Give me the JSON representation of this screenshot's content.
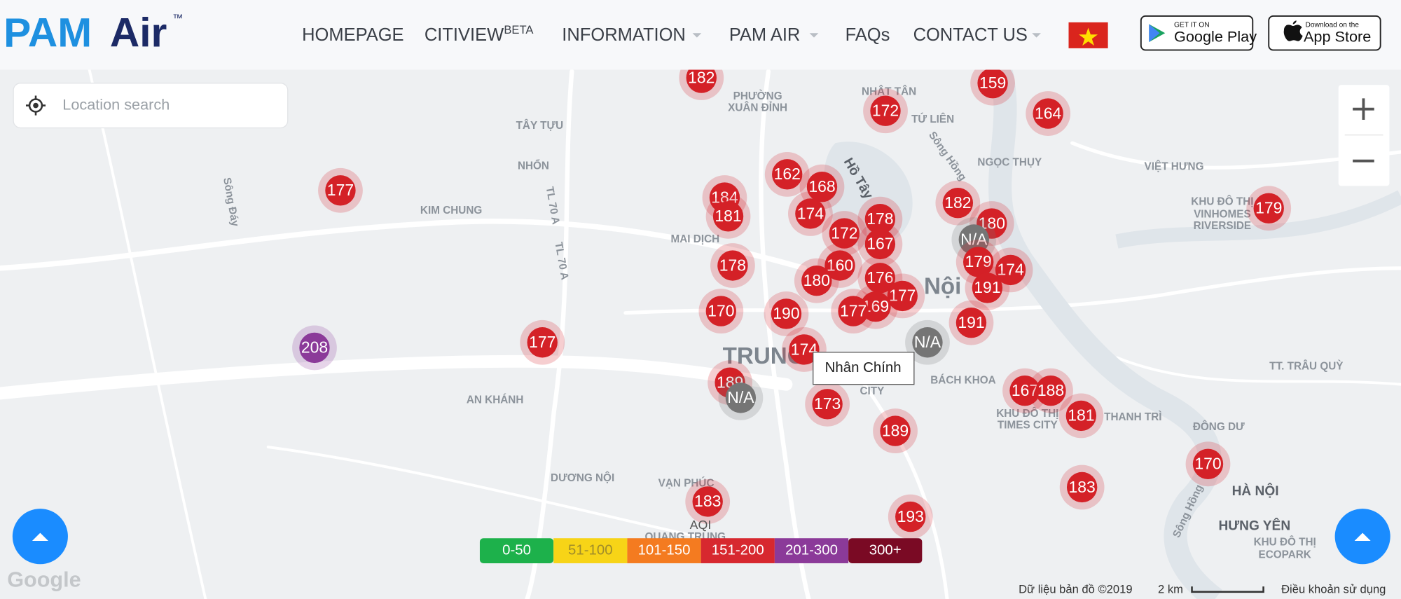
{
  "header": {
    "logo_pam": "PAM",
    "logo_air": "Air",
    "logo_mark": "™",
    "nav": [
      "HOMEPAGE",
      "CITIVIEW",
      "INFORMATION",
      "PAM AIR",
      "FAQs",
      "CONTACT US"
    ],
    "nav_badge": "BETA",
    "google_play": {
      "small": "GET IT ON",
      "big": "Google Play"
    },
    "app_store": {
      "small": "Download on the",
      "big": "App Store"
    }
  },
  "search": {
    "placeholder": "Location search"
  },
  "map": {
    "labels": [
      "PHƯỜNG",
      "XUÂN ĐỈNH",
      "NHẬT TÂN",
      "TỨ LIÊN",
      "TÂY TỰU",
      "NHỔN",
      "Sông Hồng",
      "NGỌC THỤY",
      "VIỆT HƯNG",
      "KHU ĐÔ THỊ",
      "VINHOMES",
      "RIVERSIDE",
      "Sông Đáy",
      "KIM CHUNG",
      "TL 70 A",
      "TL 70 A",
      "MAI DỊCH",
      "Hồ Tây",
      "Nội",
      "TRUNG",
      "AN KHÁNH",
      "BÁCH KHOA",
      "TT. TRÂU QUỲ",
      "ĐÔNG DƯ",
      "KHU ĐÔ THỊ",
      "TIMES CITY",
      "THANH TRÌ",
      "DƯƠNG NỘI",
      "VẠN PHÚC",
      "HÀ NỘI",
      "HƯNG YÊN",
      "KHU ĐÔ THỊ",
      "ECOPARK",
      "Sông Hồng",
      "QUANG TRUNG",
      "CITY"
    ],
    "markers": [
      {
        "label": "182",
        "color": "#d42127"
      },
      {
        "label": "159",
        "color": "#d42127"
      },
      {
        "label": "172",
        "color": "#d42127"
      },
      {
        "label": "164",
        "color": "#d42127"
      },
      {
        "label": "177",
        "color": "#d42127"
      },
      {
        "label": "179",
        "color": "#d42127"
      },
      {
        "label": "162",
        "color": "#d42127"
      },
      {
        "label": "168",
        "color": "#d42127"
      },
      {
        "label": "184",
        "color": "#d42127"
      },
      {
        "label": "181",
        "color": "#d42127"
      },
      {
        "label": "174",
        "color": "#d42127"
      },
      {
        "label": "178",
        "color": "#d42127"
      },
      {
        "label": "182",
        "color": "#d42127"
      },
      {
        "label": "180",
        "color": "#d42127"
      },
      {
        "label": "172",
        "color": "#d42127"
      },
      {
        "label": "167",
        "color": "#d42127"
      },
      {
        "label": "N/A",
        "color": "#757575"
      },
      {
        "label": "178",
        "color": "#d42127"
      },
      {
        "label": "160",
        "color": "#d42127"
      },
      {
        "label": "179",
        "color": "#d42127"
      },
      {
        "label": "174",
        "color": "#d42127"
      },
      {
        "label": "180",
        "color": "#d42127"
      },
      {
        "label": "176",
        "color": "#d42127"
      },
      {
        "label": "191",
        "color": "#d42127"
      },
      {
        "label": "177",
        "color": "#d42127"
      },
      {
        "label": "170",
        "color": "#d42127"
      },
      {
        "label": "190",
        "color": "#d42127"
      },
      {
        "label": "169",
        "color": "#d42127"
      },
      {
        "label": "177",
        "color": "#d42127"
      },
      {
        "label": "191",
        "color": "#d42127"
      },
      {
        "label": "208",
        "color": "#8b3a99"
      },
      {
        "label": "177",
        "color": "#d42127"
      },
      {
        "label": "N/A",
        "color": "#757575"
      },
      {
        "label": "174",
        "color": "#d42127"
      },
      {
        "label": "189",
        "color": "#d42127"
      },
      {
        "label": "N/A",
        "color": "#757575"
      },
      {
        "label": "173",
        "color": "#d42127"
      },
      {
        "label": "167",
        "color": "#d42127"
      },
      {
        "label": "188",
        "color": "#d42127"
      },
      {
        "label": "181",
        "color": "#d42127"
      },
      {
        "label": "189",
        "color": "#d42127"
      },
      {
        "label": "170",
        "color": "#d42127"
      },
      {
        "label": "183",
        "color": "#d42127"
      },
      {
        "label": "183",
        "color": "#d42127"
      },
      {
        "label": "193",
        "color": "#d42127"
      }
    ],
    "tooltip": "Nhân Chính",
    "attribution": {
      "logo": "Google",
      "data": "Dữ liệu bản đồ ©2019",
      "scale": "2 km",
      "terms": "Điều khoản sử dụng"
    }
  },
  "legend": {
    "title": "AQI",
    "ranges": [
      {
        "label": "0-50",
        "color": "#1db14b",
        "text": "#ffffff"
      },
      {
        "label": "51-100",
        "color": "#f7d417",
        "text": "#a08c2a"
      },
      {
        "label": "101-150",
        "color": "#f47b20",
        "text": "#ffffff"
      },
      {
        "label": "151-200",
        "color": "#d7282f",
        "text": "#ffffff"
      },
      {
        "label": "201-300",
        "color": "#8b3a99",
        "text": "#ffffff"
      },
      {
        "label": "300+",
        "color": "#7a0a24",
        "text": "#ffffff"
      }
    ]
  }
}
